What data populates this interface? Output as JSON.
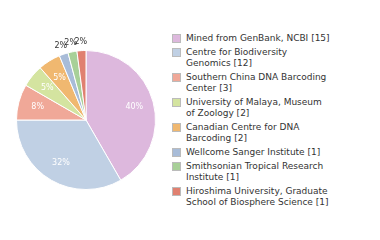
{
  "chart_data": {
    "type": "pie",
    "categories": [
      "Mined from GenBank, NCBI [15]",
      "Centre for Biodiversity\nGenomics [12]",
      "Southern China DNA Barcoding\nCenter [3]",
      "University of Malaya, Museum\nof Zoology [2]",
      "Canadian Centre for DNA\nBarcoding [2]",
      "Wellcome Sanger Institute [1]",
      "Smithsonian Tropical Research\nInstitute [1]",
      "Hiroshima University, Graduate\nSchool of Biosphere Science [1]"
    ],
    "values": [
      40,
      32,
      8,
      5,
      5,
      2,
      2,
      2
    ],
    "value_labels": [
      "40%",
      "32%",
      "8%",
      "5%",
      "5%",
      "2%",
      "2%",
      "2%"
    ],
    "colors": [
      "#ddb8dd",
      "#c0d0e4",
      "#f0a898",
      "#d4e4a0",
      "#f0b870",
      "#a8bcd8",
      "#a8d098",
      "#e08070"
    ],
    "data_labels": true,
    "legend": "right"
  }
}
